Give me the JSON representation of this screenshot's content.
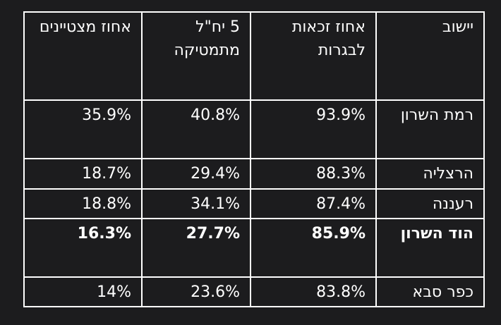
{
  "table": {
    "headers": {
      "town": "יישוב",
      "eligibility": "אחוז זכאות לבגרות",
      "math5": "5 יח\"ל מתמטיקה",
      "excellent": "אחוז מצטיינים"
    },
    "rows": [
      {
        "town": "רמת השרון",
        "eligibility": "93.9%",
        "math5": "40.8%",
        "excellent": "35.9%"
      },
      {
        "town": "הרצליה",
        "eligibility": "88.3%",
        "math5": "29.4%",
        "excellent": "18.7%"
      },
      {
        "town": "רעננה",
        "eligibility": "87.4%",
        "math5": "34.1%",
        "excellent": "18.8%"
      },
      {
        "town": "הוד השרון",
        "eligibility": "85.9%",
        "math5": "27.7%",
        "excellent": "16.3%"
      },
      {
        "town": "כפר סבא",
        "eligibility": "83.8%",
        "math5": "23.6%",
        "excellent": "14%"
      }
    ],
    "highlighted_row": "הוד השרון"
  },
  "colors": {
    "background": "#1c1c1e",
    "text": "#ffffff",
    "border": "#ffffff"
  }
}
